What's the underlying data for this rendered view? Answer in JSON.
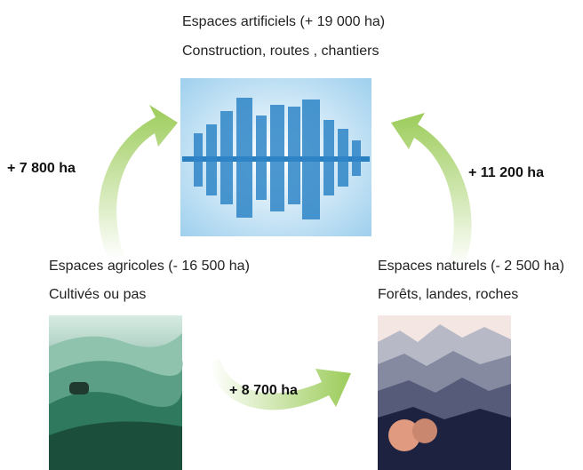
{
  "nodes": [
    {
      "label": "Espaces artificiels (+ 19 000 ha)",
      "sublabel": "Construction, routes , chantiers"
    },
    {
      "label": "Espaces agricoles (- 16 500 ha)",
      "sublabel": "Cultivés ou pas"
    },
    {
      "label": "Espaces naturels (- 2 500 ha)",
      "sublabel": "Forêts, landes, roches"
    }
  ],
  "arrows": [
    {
      "label": "+ 7 800 ha"
    },
    {
      "label": "+ 11 200 ha"
    },
    {
      "label": "+ 8 700 ha"
    }
  ]
}
